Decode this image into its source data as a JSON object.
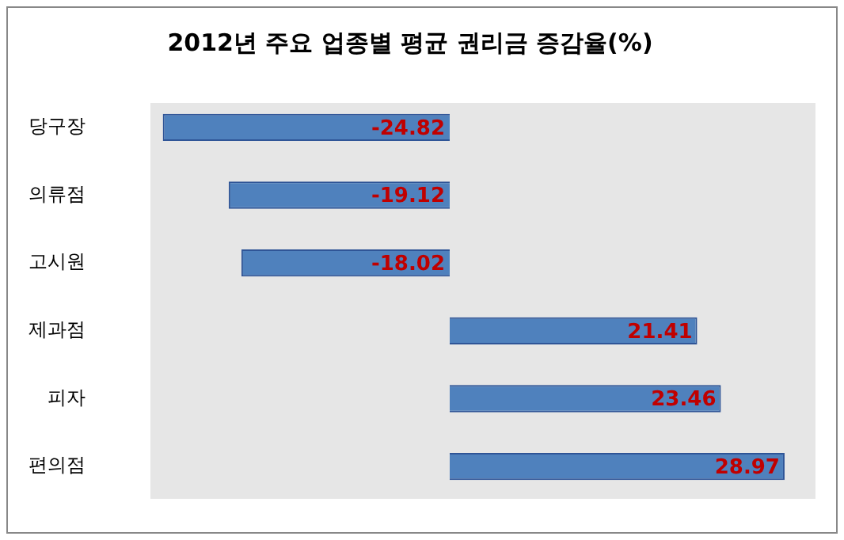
{
  "chart_data": {
    "type": "bar",
    "orientation": "horizontal",
    "title": "2012년 주요 업종별 평균 권리금 증감율(%)",
    "categories": [
      "당구장",
      "의류점",
      "고시원",
      "제과점",
      "피자",
      "편의점"
    ],
    "values": [
      -24.82,
      -19.12,
      -18.02,
      21.41,
      23.46,
      28.97
    ],
    "color": "#4f81bd",
    "data_labels": true,
    "legend": false,
    "tick_labels": "y"
  }
}
